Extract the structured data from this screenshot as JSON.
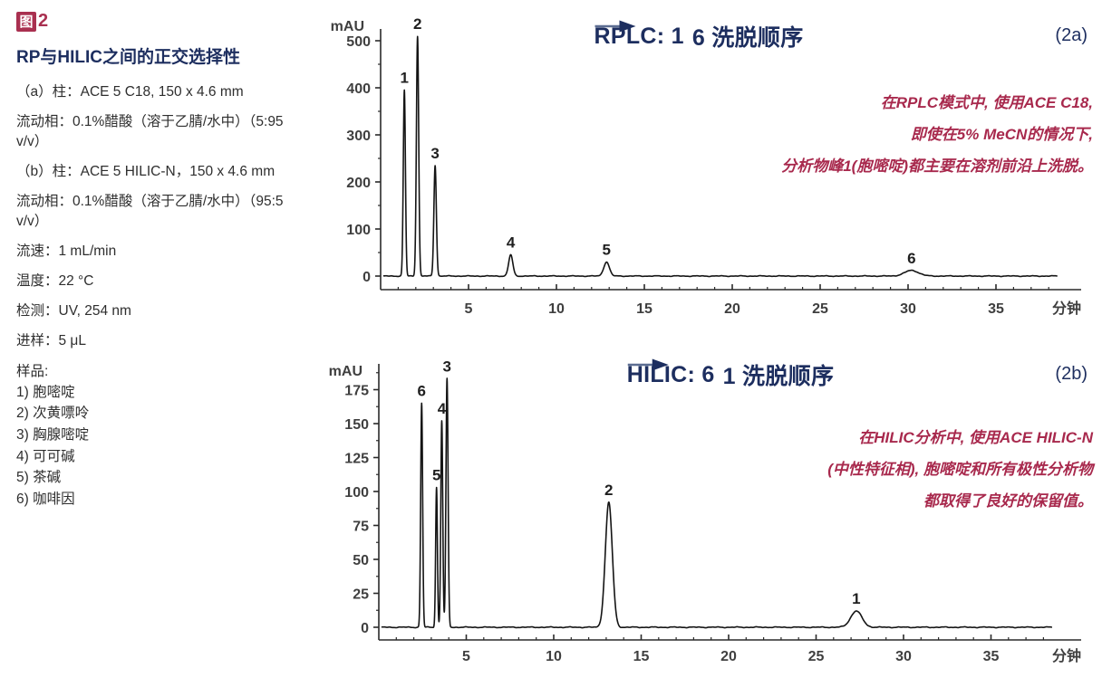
{
  "colors": {
    "accent_red": "#a8294d",
    "navy": "#1d2e5f",
    "text_dark": "#2e2e2e",
    "trace": "#141414"
  },
  "sidebar": {
    "figure_char": "图",
    "figure_num": "2",
    "title": "RP与HILIC之间的正交选择性",
    "params": [
      "（a）柱：ACE 5 C18, 150 x 4.6 mm",
      "流动相：0.1%醋酸（溶于乙腈/水中）（5:95 v/v）",
      "（b）柱：ACE 5 HILIC-N，150 x 4.6 mm",
      "流动相：0.1%醋酸（溶于乙腈/水中）（95:5 v/v）",
      "流速：1 mL/min",
      "温度：22 °C",
      "检测：UV, 254 nm",
      "进样：5 μL"
    ],
    "sample_header": "样品:",
    "samples": [
      "1) 胞嘧啶",
      "2) 次黄嘌呤",
      "3) 胸腺嘧啶",
      "4) 可可碱",
      "5) 茶碱",
      "6) 咖啡因"
    ]
  },
  "chart_data": [
    {
      "type": "line",
      "id": "rplc",
      "title_prefix": "RPLC: 1",
      "title_suffix": "6 洗脱顺序",
      "panel_label": "(2a)",
      "ylabel": "mAU",
      "xlabel": "分钟",
      "ylim": [
        0,
        520
      ],
      "yticks": [
        0,
        100,
        200,
        300,
        400,
        500
      ],
      "xlim": [
        0,
        38.5
      ],
      "xticks": [
        5,
        10,
        15,
        20,
        25,
        30,
        35
      ],
      "grid": false,
      "legend": "none",
      "annotation_lines": [
        "在RPLC模式中, 使用ACE C18,",
        "即使在5% MeCN的情况下,",
        "分析物峰1(胞嘧啶)都主要在溶剂前沿上洗脱。"
      ],
      "peaks": [
        {
          "label": "1",
          "time_min": 1.35,
          "height_mAU": 395,
          "sigma": 0.06
        },
        {
          "label": "2",
          "time_min": 2.1,
          "height_mAU": 510,
          "sigma": 0.065
        },
        {
          "label": "3",
          "time_min": 3.1,
          "height_mAU": 235,
          "sigma": 0.07
        },
        {
          "label": "4",
          "time_min": 7.4,
          "height_mAU": 45,
          "sigma": 0.12
        },
        {
          "label": "5",
          "time_min": 12.85,
          "height_mAU": 30,
          "sigma": 0.16
        },
        {
          "label": "6",
          "time_min": 30.2,
          "height_mAU": 12,
          "sigma": 0.4
        }
      ]
    },
    {
      "type": "line",
      "id": "hilic",
      "title_prefix": "HILIC: 6",
      "title_suffix": "1 洗脱顺序",
      "panel_label": "(2b)",
      "ylabel": "mAU",
      "xlabel": "分钟",
      "ylim": [
        0,
        190
      ],
      "yticks": [
        0,
        25,
        50,
        75,
        100,
        125,
        150,
        175
      ],
      "xlim": [
        0,
        38.5
      ],
      "xticks": [
        5,
        10,
        15,
        20,
        25,
        30,
        35
      ],
      "grid": false,
      "legend": "none",
      "annotation_lines": [
        "在HILIC分析中, 使用ACE HILIC-N",
        "(中性特征相), 胞嘧啶和所有极性分析物",
        "都取得了良好的保留值。"
      ],
      "peaks": [
        {
          "label": "6",
          "time_min": 2.45,
          "height_mAU": 165,
          "sigma": 0.055
        },
        {
          "label": "5",
          "time_min": 3.3,
          "height_mAU": 103,
          "sigma": 0.05
        },
        {
          "label": "4",
          "time_min": 3.6,
          "height_mAU": 152,
          "sigma": 0.055
        },
        {
          "label": "3",
          "time_min": 3.9,
          "height_mAU": 183,
          "sigma": 0.06
        },
        {
          "label": "2",
          "time_min": 13.15,
          "height_mAU": 92,
          "sigma": 0.2
        },
        {
          "label": "1",
          "time_min": 27.3,
          "height_mAU": 12,
          "sigma": 0.32
        }
      ]
    }
  ]
}
